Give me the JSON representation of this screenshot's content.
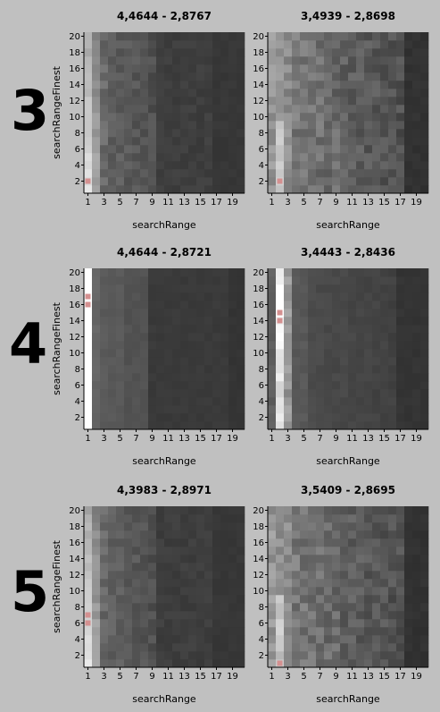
{
  "rows": [
    {
      "label": "3"
    },
    {
      "label": "4"
    },
    {
      "label": "5"
    }
  ],
  "colors": {
    "background": "#c0c0c0",
    "highlight": "#d49090",
    "axis": "#000000"
  },
  "chart_data": [
    {
      "type": "heatmap",
      "id": "r3c1",
      "title": "4,4644 - 2,8767",
      "xlabel": "searchRange",
      "ylabel": "searchRangeFinest",
      "x": [
        1,
        20
      ],
      "y": [
        1,
        20
      ],
      "xticks": [
        1,
        3,
        5,
        7,
        9,
        11,
        13,
        15,
        17,
        19
      ],
      "yticks": [
        2,
        4,
        6,
        8,
        10,
        12,
        14,
        16,
        18,
        20
      ],
      "highlight_cells": [
        [
          1,
          2
        ]
      ],
      "pattern": "a"
    },
    {
      "type": "heatmap",
      "id": "r3c2",
      "title": "3,4939 - 2,8698",
      "xlabel": "searchRange",
      "ylabel": "",
      "x": [
        1,
        20
      ],
      "y": [
        1,
        20
      ],
      "xticks": [
        1,
        3,
        5,
        7,
        9,
        11,
        13,
        15,
        17,
        19
      ],
      "yticks": [
        2,
        4,
        6,
        8,
        10,
        12,
        14,
        16,
        18,
        20
      ],
      "highlight_cells": [
        [
          2,
          2
        ]
      ],
      "pattern": "b"
    },
    {
      "type": "heatmap",
      "id": "r4c1",
      "title": "4,4644 - 2,8721",
      "xlabel": "searchRange",
      "ylabel": "searchRangeFinest",
      "x": [
        1,
        20
      ],
      "y": [
        1,
        20
      ],
      "xticks": [
        1,
        3,
        5,
        7,
        9,
        11,
        13,
        15,
        17,
        19
      ],
      "yticks": [
        2,
        4,
        6,
        8,
        10,
        12,
        14,
        16,
        18,
        20
      ],
      "highlight_cells": [
        [
          1,
          17
        ],
        [
          1,
          16
        ]
      ],
      "pattern": "c"
    },
    {
      "type": "heatmap",
      "id": "r4c2",
      "title": "3,4443 - 2,8436",
      "xlabel": "searchRange",
      "ylabel": "",
      "x": [
        1,
        20
      ],
      "y": [
        1,
        20
      ],
      "xticks": [
        1,
        3,
        5,
        7,
        9,
        11,
        13,
        15,
        17,
        19
      ],
      "yticks": [
        2,
        4,
        6,
        8,
        10,
        12,
        14,
        16,
        18,
        20
      ],
      "highlight_cells": [
        [
          2,
          15
        ],
        [
          2,
          14
        ]
      ],
      "pattern": "d"
    },
    {
      "type": "heatmap",
      "id": "r5c1",
      "title": "4,3983 - 2,8971",
      "xlabel": "searchRange",
      "ylabel": "searchRangeFinest",
      "x": [
        1,
        20
      ],
      "y": [
        1,
        20
      ],
      "xticks": [
        1,
        3,
        5,
        7,
        9,
        11,
        13,
        15,
        17,
        19
      ],
      "yticks": [
        2,
        4,
        6,
        8,
        10,
        12,
        14,
        16,
        18,
        20
      ],
      "highlight_cells": [
        [
          1,
          7
        ],
        [
          1,
          6
        ]
      ],
      "pattern": "a"
    },
    {
      "type": "heatmap",
      "id": "r5c2",
      "title": "3,5409 - 2,8695",
      "xlabel": "searchRange",
      "ylabel": "",
      "x": [
        1,
        20
      ],
      "y": [
        1,
        20
      ],
      "xticks": [
        1,
        3,
        5,
        7,
        9,
        11,
        13,
        15,
        17,
        19
      ],
      "yticks": [
        2,
        4,
        6,
        8,
        10,
        12,
        14,
        16,
        18,
        20
      ],
      "highlight_cells": [
        [
          2,
          1
        ]
      ],
      "pattern": "b"
    }
  ]
}
